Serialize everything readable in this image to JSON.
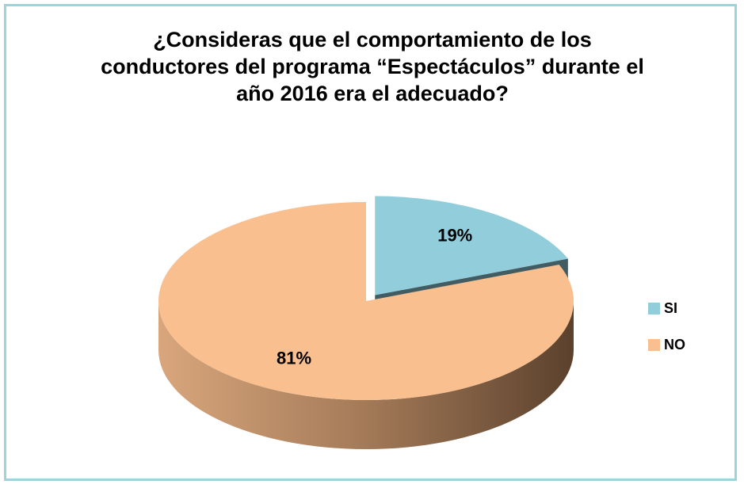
{
  "chart_data": {
    "type": "pie",
    "title": "¿Consideras que el comportamiento de los conductores del programa “Espectáculos” durante el año 2016 era el adecuado?",
    "categories": [
      "SI",
      "NO"
    ],
    "values": [
      19,
      81
    ],
    "value_labels": [
      "19%",
      "81%"
    ],
    "colors": [
      "#92cddc",
      "#f9bf8f"
    ],
    "legend": "right"
  }
}
